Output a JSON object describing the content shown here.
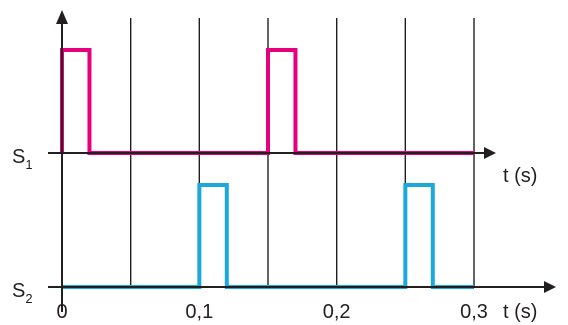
{
  "chart_data": {
    "type": "line",
    "title": "",
    "xlabel": "t (s)",
    "x_unit": "s",
    "xlim": [
      0,
      0.3
    ],
    "grid_step": 0.05,
    "grid": true,
    "x_tick_labels": [
      "0",
      "0,1",
      "0,2",
      "0,3"
    ],
    "x_tick_values": [
      0,
      0.1,
      0.2,
      0.3
    ],
    "signal_colors": {
      "S1": "#e6007e",
      "S2": "#1ba8dc"
    },
    "axis_color": "#231f20",
    "series": [
      {
        "name": "S1",
        "name_main": "S",
        "name_sub": "1",
        "color": "#e6007e",
        "pulses": [
          {
            "start": 0.0,
            "end": 0.02
          },
          {
            "start": 0.15,
            "end": 0.17
          }
        ],
        "pulse_height": 1
      },
      {
        "name": "S2",
        "name_main": "S",
        "name_sub": "2",
        "color": "#1ba8dc",
        "pulses": [
          {
            "start": 0.1,
            "end": 0.12
          },
          {
            "start": 0.25,
            "end": 0.27
          }
        ],
        "pulse_height": 1
      }
    ]
  }
}
